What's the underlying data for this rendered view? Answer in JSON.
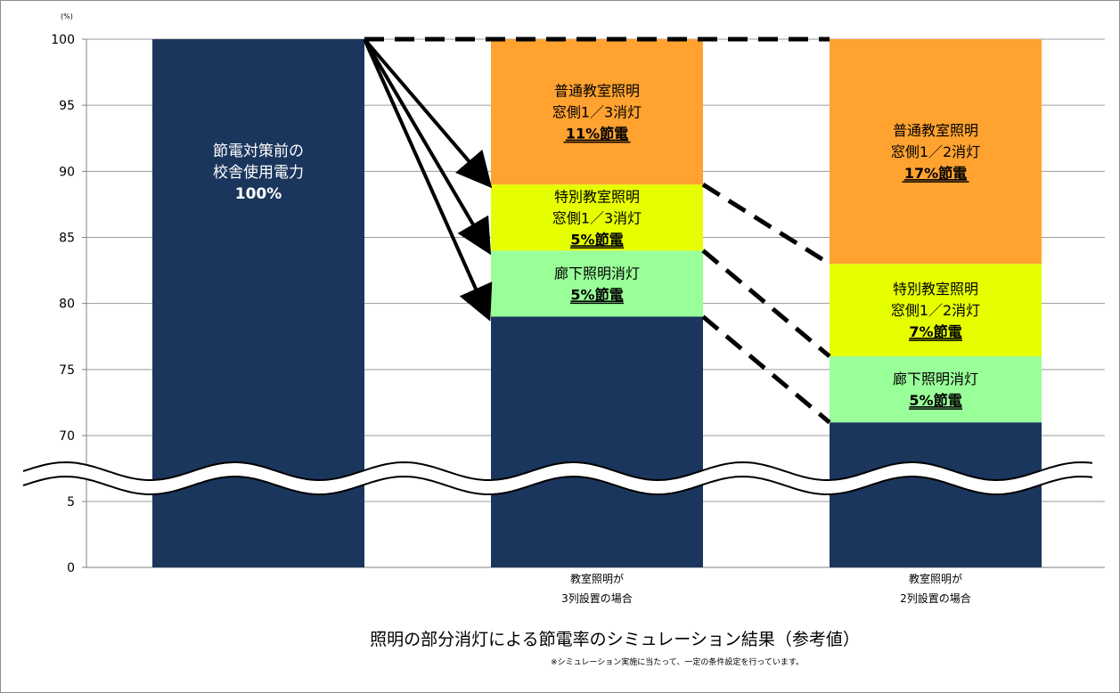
{
  "chart_data": {
    "type": "bar",
    "stacked": true,
    "y_unit": "(%)",
    "y_ticks_upper": [
      "70",
      "75",
      "80",
      "85",
      "90",
      "95",
      "100"
    ],
    "y_ticks_lower": [
      "0",
      "5"
    ],
    "axis_break": true,
    "grid": true,
    "legend": "none",
    "categories": [
      {
        "label_lines": []
      },
      {
        "label_lines": [
          "教室照明が",
          "3列設置の場合"
        ]
      },
      {
        "label_lines": [
          "教室照明が",
          "2列設置の場合"
        ]
      }
    ],
    "bars": [
      {
        "segments": [
          {
            "from": 0,
            "to": 100,
            "color": "#1b365d",
            "label_lines": [
              "節電対策前の",
              "校舎使用電力",
              "100%"
            ],
            "emphasis_line": 2,
            "text_color": "#ffffff"
          }
        ]
      },
      {
        "segments": [
          {
            "from": 0,
            "to": 79,
            "color": "#1b365d",
            "label_lines": []
          },
          {
            "from": 79,
            "to": 84,
            "color": "#99ff99",
            "label_lines": [
              "廊下照明消灯",
              "5%節電"
            ],
            "emphasis_line": 1
          },
          {
            "from": 84,
            "to": 89,
            "color": "#e6ff00",
            "label_lines": [
              "特別教室照明",
              "窓側1／3消灯",
              "5%節電"
            ],
            "emphasis_line": 2
          },
          {
            "from": 89,
            "to": 100,
            "color": "#ffa230",
            "label_lines": [
              "普通教室照明",
              "窓側1／3消灯",
              "11%節電"
            ],
            "emphasis_line": 2
          }
        ]
      },
      {
        "segments": [
          {
            "from": 0,
            "to": 71,
            "color": "#1b365d",
            "label_lines": []
          },
          {
            "from": 71,
            "to": 76,
            "color": "#99ff99",
            "label_lines": [
              "廊下照明消灯",
              "5%節電"
            ],
            "emphasis_line": 1
          },
          {
            "from": 76,
            "to": 83,
            "color": "#e6ff00",
            "label_lines": [
              "特別教室照明",
              "窓側1／2消灯",
              "7%節電"
            ],
            "emphasis_line": 2
          },
          {
            "from": 83,
            "to": 100,
            "color": "#ffa230",
            "label_lines": [
              "普通教室照明",
              "窓側1／2消灯",
              "17%節電"
            ],
            "emphasis_line": 2
          }
        ]
      }
    ],
    "arrows_from_bar1_to_bar2_at": [
      89,
      84,
      79
    ],
    "dashed_connectors": [
      {
        "from_bar": 0,
        "to_bar": 2,
        "y_from": 100,
        "y_to": 100
      },
      {
        "from_bar": 1,
        "to_bar": 2,
        "y_from": 89,
        "y_to": 83
      },
      {
        "from_bar": 1,
        "to_bar": 2,
        "y_from": 84,
        "y_to": 76
      },
      {
        "from_bar": 1,
        "to_bar": 2,
        "y_from": 79,
        "y_to": 71
      }
    ],
    "title": "照明の部分消灯による節電率のシミュレーション結果（参考値）",
    "note": "※シミュレーション実施に当たって、一定の条件設定を行っています。"
  }
}
